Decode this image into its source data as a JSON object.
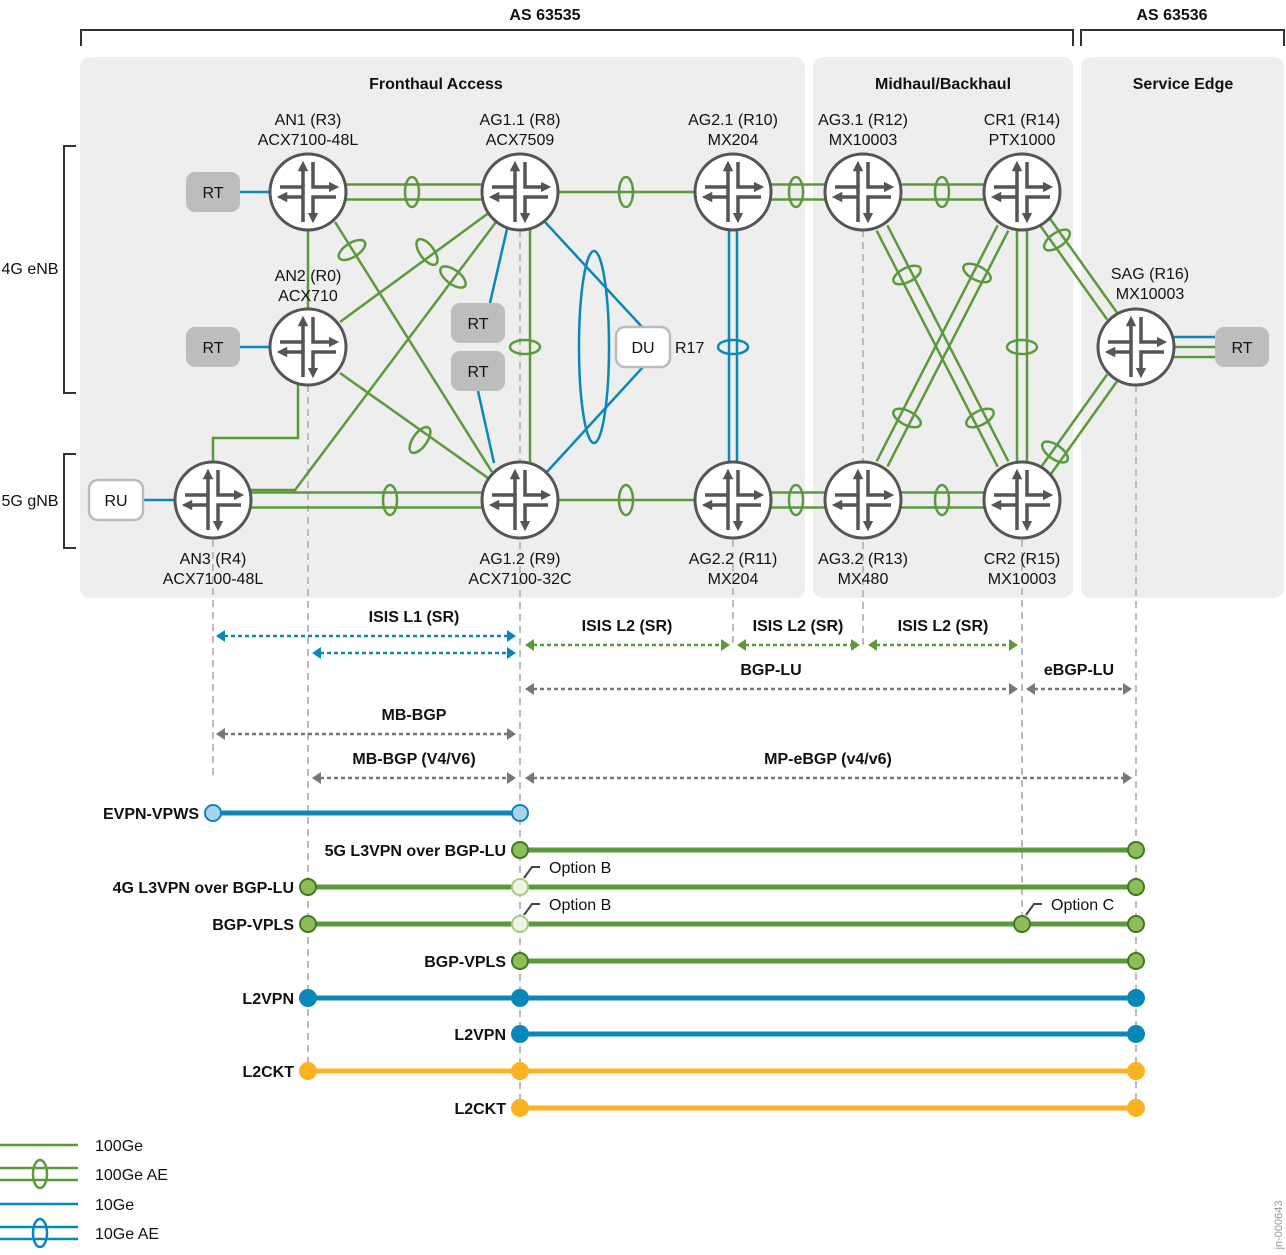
{
  "as_labels": {
    "left": "AS 63535",
    "right": "AS 63536"
  },
  "regions": [
    {
      "id": "fronthaul",
      "title": "Fronthaul Access"
    },
    {
      "id": "midhaul",
      "title": "Midhaul/Backhaul"
    },
    {
      "id": "service-edge",
      "title": "Service Edge"
    }
  ],
  "side_labels": [
    "4G eNB",
    "5G gNB"
  ],
  "nodes": [
    {
      "id": "AN1",
      "name": "AN1 (R3)",
      "model": "ACX7100-48L"
    },
    {
      "id": "AG11",
      "name": "AG1.1 (R8)",
      "model": "ACX7509"
    },
    {
      "id": "AG21",
      "name": "AG2.1 (R10)",
      "model": "MX204"
    },
    {
      "id": "AG31",
      "name": "AG3.1 (R12)",
      "model": "MX10003"
    },
    {
      "id": "CR1",
      "name": "CR1 (R14)",
      "model": "PTX1000"
    },
    {
      "id": "AN2",
      "name": "AN2 (R0)",
      "model": "ACX710"
    },
    {
      "id": "SAG",
      "name": "SAG (R16)",
      "model": "MX10003"
    },
    {
      "id": "AN3",
      "name": "AN3 (R4)",
      "model": "ACX7100-48L"
    },
    {
      "id": "AG12",
      "name": "AG1.2 (R9)",
      "model": "ACX7100-32C"
    },
    {
      "id": "AG22",
      "name": "AG2.2 (R11)",
      "model": "MX204"
    },
    {
      "id": "AG32",
      "name": "AG3.2 (R13)",
      "model": "MX480"
    },
    {
      "id": "CR2",
      "name": "CR2 (R15)",
      "model": "MX10003"
    }
  ],
  "endpoints": [
    {
      "id": "rt1",
      "label": "RT"
    },
    {
      "id": "rt2",
      "label": "RT"
    },
    {
      "id": "rt3",
      "label": "RT"
    },
    {
      "id": "rt4",
      "label": "RT"
    },
    {
      "id": "du",
      "label": "DU",
      "tag": "R17"
    },
    {
      "id": "ru",
      "label": "RU"
    },
    {
      "id": "rt5",
      "label": "RT"
    }
  ],
  "links": [
    {
      "from": "rt1",
      "to": "AN1",
      "type": "10Ge"
    },
    {
      "from": "rt2",
      "to": "AN2",
      "type": "10Ge"
    },
    {
      "from": "ru",
      "to": "AN3",
      "type": "10Ge"
    },
    {
      "from": "AN1",
      "to": "AG11",
      "type": "100Ge AE"
    },
    {
      "from": "AN1",
      "to": "AN2",
      "type": "100Ge"
    },
    {
      "from": "AN1",
      "to": "AG12",
      "type": "100Ge AE"
    },
    {
      "from": "AN2",
      "to": "AG11",
      "type": "100Ge AE"
    },
    {
      "from": "AN3",
      "to": "AG11",
      "type": "100Ge AE"
    },
    {
      "from": "AN3",
      "to": "AN2",
      "type": "100Ge"
    },
    {
      "from": "AN2",
      "to": "AG12",
      "type": "100Ge AE"
    },
    {
      "from": "AN3",
      "to": "AG12",
      "type": "100Ge AE"
    },
    {
      "from": "AG11",
      "to": "AG12",
      "type": "100Ge AE"
    },
    {
      "from": "rt3",
      "to": "AG11",
      "type": "10Ge"
    },
    {
      "from": "rt4",
      "to": "AG12",
      "type": "10Ge"
    },
    {
      "from": "AG11",
      "to": "du",
      "type": "10Ge AE"
    },
    {
      "from": "AG12",
      "to": "du",
      "type": "10Ge AE"
    },
    {
      "from": "AG11",
      "to": "AG21",
      "type": "100Ge AE"
    },
    {
      "from": "AG12",
      "to": "AG22",
      "type": "100Ge AE"
    },
    {
      "from": "AG21",
      "to": "AG22",
      "type": "10Ge AE"
    },
    {
      "from": "AG21",
      "to": "AG31",
      "type": "100Ge AE"
    },
    {
      "from": "AG22",
      "to": "AG32",
      "type": "100Ge AE"
    },
    {
      "from": "AG31",
      "to": "CR1",
      "type": "100Ge AE"
    },
    {
      "from": "AG32",
      "to": "CR2",
      "type": "100Ge AE"
    },
    {
      "from": "AG31",
      "to": "CR2",
      "type": "100Ge AE"
    },
    {
      "from": "AG32",
      "to": "CR1",
      "type": "100Ge AE"
    },
    {
      "from": "CR1",
      "to": "CR2",
      "type": "100Ge AE"
    },
    {
      "from": "CR1",
      "to": "SAG",
      "type": "100Ge AE"
    },
    {
      "from": "CR2",
      "to": "SAG",
      "type": "100Ge AE"
    },
    {
      "from": "SAG",
      "to": "rt5",
      "type": "10Ge"
    },
    {
      "from": "SAG",
      "to": "rt5",
      "type": "100Ge"
    }
  ],
  "protocols": [
    {
      "label": "ISIS L1 (SR)",
      "from": "AN3",
      "to": "AG12",
      "color": "blue"
    },
    {
      "label": "",
      "from": "AN2",
      "to": "AG12",
      "color": "blue"
    },
    {
      "label": "ISIS L2 (SR)",
      "from": "AG12",
      "to": "AG22",
      "color": "green"
    },
    {
      "label": "ISIS L2 (SR)",
      "from": "AG22",
      "to": "AG32",
      "color": "green"
    },
    {
      "label": "ISIS L2 (SR)",
      "from": "AG32",
      "to": "CR2",
      "color": "green"
    },
    {
      "label": "BGP-LU",
      "from": "AG12",
      "to": "CR2",
      "color": "gray"
    },
    {
      "label": "eBGP-LU",
      "from": "CR2",
      "to": "SAG",
      "color": "gray"
    },
    {
      "label": "MB-BGP",
      "from": "AN3",
      "to": "AG12",
      "color": "gray"
    },
    {
      "label": "MB-BGP (V4/V6)",
      "from": "AN2",
      "to": "AG12",
      "color": "gray"
    },
    {
      "label": "MP-eBGP (v4/v6)",
      "from": "AG12",
      "to": "SAG",
      "color": "gray"
    }
  ],
  "services": [
    {
      "label": "EVPN-VPWS",
      "from": "AN3",
      "to": "AG12",
      "style": "evpn"
    },
    {
      "label": "5G L3VPN over BGP-LU",
      "from": "AG12",
      "to": "SAG",
      "style": "l3vpn"
    },
    {
      "label": "4G L3VPN over BGP-LU",
      "from": "AN2",
      "to": "SAG",
      "style": "l3vpn",
      "stitch": [
        {
          "at": "AG12",
          "note": "Option B"
        }
      ]
    },
    {
      "label": "BGP-VPLS",
      "from": "AN2",
      "to": "SAG",
      "style": "l3vpn",
      "stitch": [
        {
          "at": "AG12",
          "note": "Option B"
        },
        {
          "at": "CR2",
          "note": "Option C"
        }
      ]
    },
    {
      "label": "BGP-VPLS",
      "from": "AG12",
      "to": "SAG",
      "style": "l3vpn"
    },
    {
      "label": "L2VPN",
      "from": "AN2",
      "to": "SAG",
      "style": "l2vpn",
      "stitch": [
        {
          "at": "AG12",
          "note": ""
        }
      ]
    },
    {
      "label": "L2VPN",
      "from": "AG12",
      "to": "SAG",
      "style": "l2vpn"
    },
    {
      "label": "L2CKT",
      "from": "AN2",
      "to": "SAG",
      "style": "l2ckt",
      "stitch": [
        {
          "at": "AG12",
          "note": ""
        }
      ]
    },
    {
      "label": "L2CKT",
      "from": "AG12",
      "to": "SAG",
      "style": "l2ckt"
    }
  ],
  "legend": [
    {
      "label": "100Ge",
      "type": "100Ge"
    },
    {
      "label": "100Ge AE",
      "type": "100Ge AE"
    },
    {
      "label": "10Ge",
      "type": "10Ge"
    },
    {
      "label": "10Ge AE",
      "type": "10Ge AE"
    }
  ],
  "watermark": "jn-000643",
  "colors": {
    "green": "#5b9a3c",
    "blue": "#0a87b8",
    "gray": "#777777",
    "yellow": "#fbb323",
    "panel": "#eeeeee",
    "router_stroke": "#555555",
    "endpoint_fill": "#bdbdbd"
  }
}
